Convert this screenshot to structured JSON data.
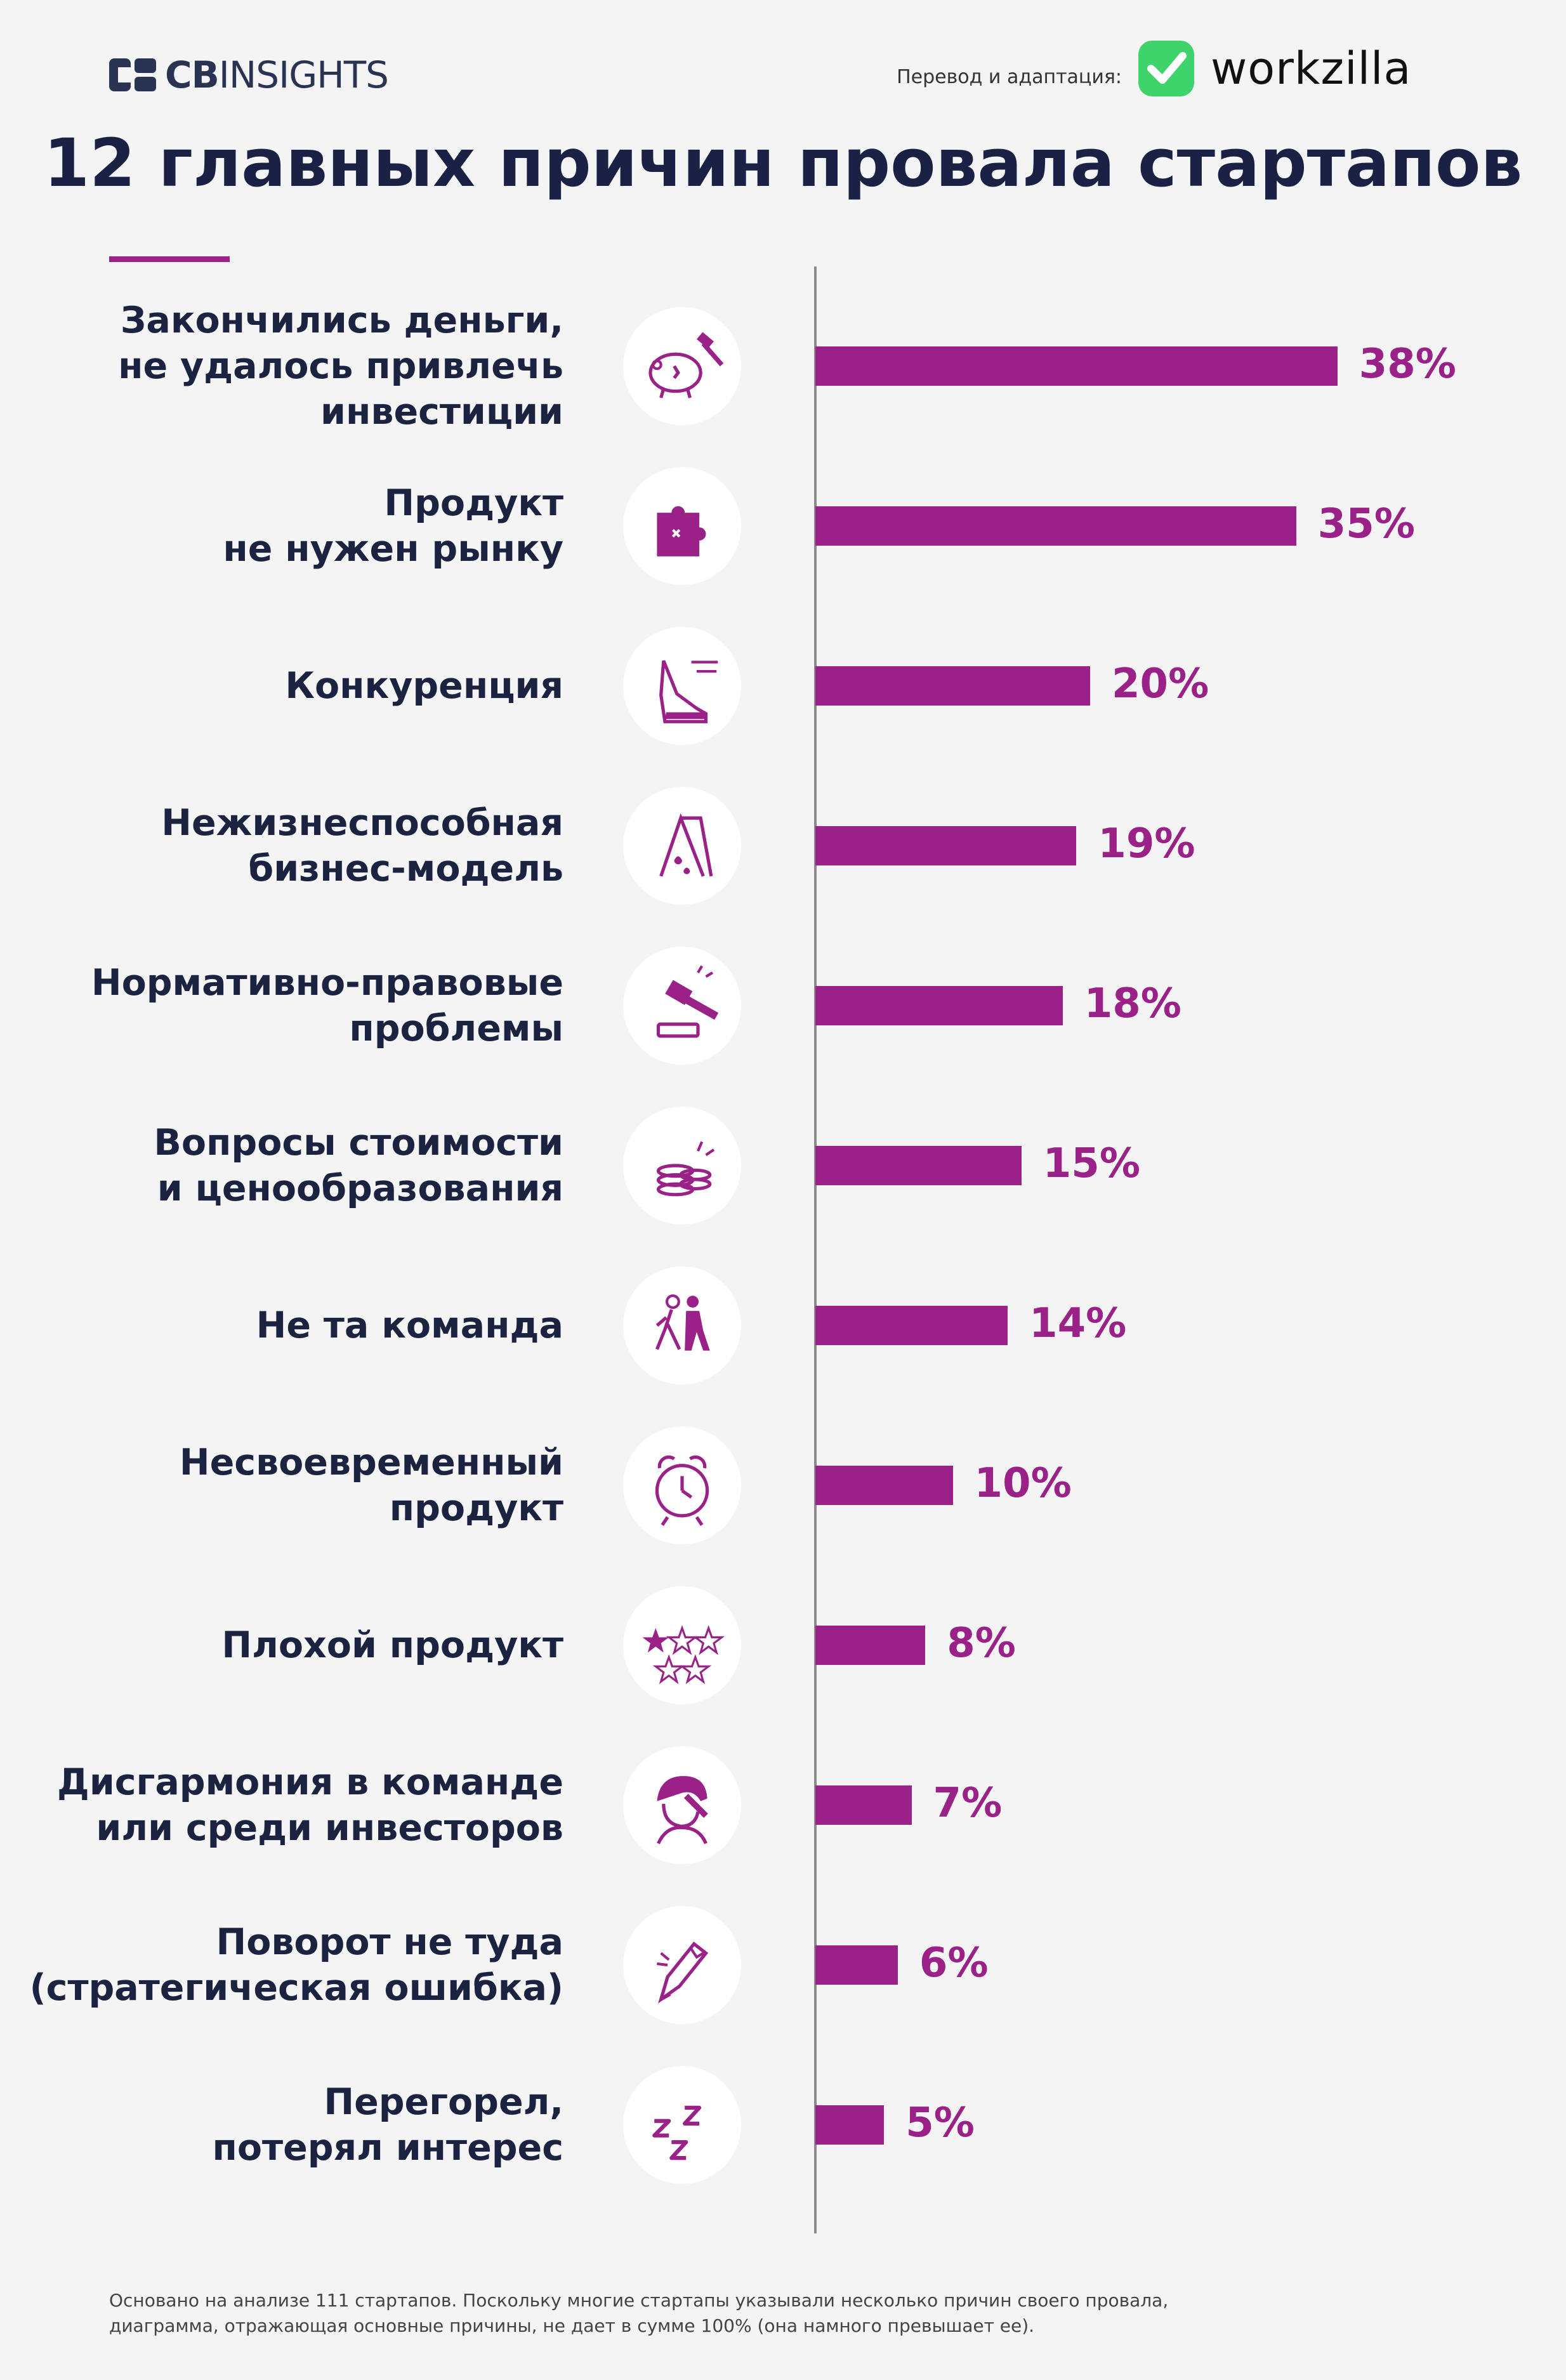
{
  "header": {
    "brand_left_bold": "CB",
    "brand_left_rest": "INSIGHTS",
    "credit": "Перевод и адаптация:",
    "brand_right": "workzilla",
    "title": "12 главных причин провала стартапов"
  },
  "colors": {
    "accent": "#9a2187",
    "text": "#1c2340",
    "wz_green": "#3fd46b"
  },
  "chart_data": {
    "type": "bar",
    "orientation": "horizontal",
    "categories": [
      "Закончились деньги, не удалось привлечь инвестиции",
      "Продукт не нужен рынку",
      "Конкуренция",
      "Нежизнеспособная бизнес-модель",
      "Нормативно-правовые проблемы",
      "Вопросы стоимости и ценообразования",
      "Не та команда",
      "Несвоевременный продукт",
      "Плохой продукт",
      "Дисгармония в команде или среди инвесторов",
      "Поворот не туда (стратегическая ошибка)",
      "Перегорел, потерял интерес"
    ],
    "values": [
      38,
      35,
      20,
      19,
      18,
      15,
      14,
      10,
      8,
      7,
      6,
      5
    ],
    "value_labels": [
      "38%",
      "35%",
      "20%",
      "19%",
      "18%",
      "15%",
      "14%",
      "10%",
      "8%",
      "7%",
      "6%",
      "5%"
    ],
    "xlim": [
      0,
      38
    ],
    "grid": false
  },
  "rows": [
    {
      "lines": [
        "Закончились деньги,",
        "не удалось привлечь",
        "инвестиции"
      ],
      "icon": "piggy-bank-hammer-icon"
    },
    {
      "lines": [
        "Продукт",
        "не нужен рынку"
      ],
      "icon": "puzzle-piece-icon"
    },
    {
      "lines": [
        "Конкуренция"
      ],
      "icon": "running-sneaker-icon"
    },
    {
      "lines": [
        "Нежизнеспособная",
        "бизнес-модель"
      ],
      "icon": "leaking-sign-icon"
    },
    {
      "lines": [
        "Нормативно-правовые",
        "проблемы"
      ],
      "icon": "gavel-icon"
    },
    {
      "lines": [
        "Вопросы стоимости",
        "и ценообразования"
      ],
      "icon": "coin-stack-icon"
    },
    {
      "lines": [
        "Не та команда"
      ],
      "icon": "walking-people-icon"
    },
    {
      "lines": [
        "Несвоевременный",
        "продукт"
      ],
      "icon": "alarm-clock-icon"
    },
    {
      "lines": [
        "Плохой продукт"
      ],
      "icon": "one-star-rating-icon"
    },
    {
      "lines": [
        "Дисгармония в команде",
        "или среди инвесторов"
      ],
      "icon": "frustrated-person-icon"
    },
    {
      "lines": [
        "Поворот не туда ",
        "(стратегическая ошибка)"
      ],
      "icon": "broken-pencil-icon"
    },
    {
      "lines": [
        "Перегорел,",
        "потерял интерес"
      ],
      "icon": "sleep-zzz-icon"
    }
  ],
  "footnote": {
    "line1": "Основано на анализе 111 стартапов. Поскольку многие стартапы указывали несколько причин своего провала,",
    "line2": "диаграмма, отражающая основные причины, не дает в сумме 100% (она намного превышает ее)."
  }
}
